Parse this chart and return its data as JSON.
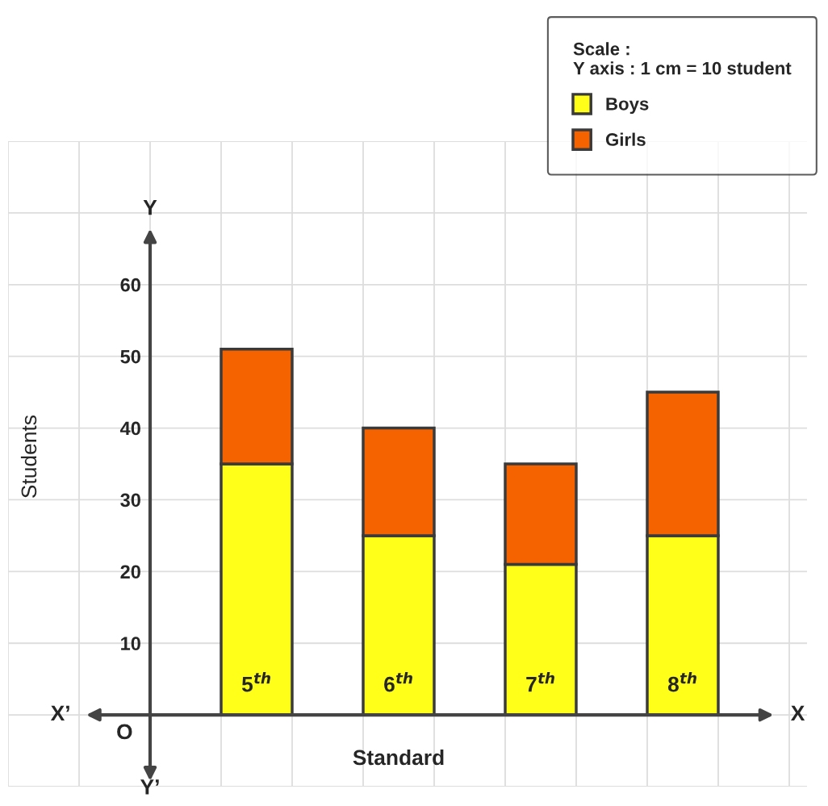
{
  "chart_data": {
    "type": "bar",
    "stacked": true,
    "xlabel": "Standard",
    "ylabel": "Students",
    "legend_title": "Scale :\nY axis : 1 cm = 10 student",
    "categories": [
      "5$^{th}$",
      "6$^{th}$",
      "7$^{th}$",
      "8$^{th}$"
    ],
    "series": [
      {
        "name": "Boys",
        "color": "#ffff1a",
        "values": [
          35,
          25,
          21,
          25
        ]
      },
      {
        "name": "Girls",
        "color": "#f56300",
        "values": [
          16,
          15,
          14,
          20
        ]
      }
    ],
    "ylim": [
      -10,
      80
    ],
    "yticks": [
      {
        "value": -10,
        "label": null
      },
      {
        "value": 0,
        "label": null
      },
      10,
      20,
      30,
      40,
      50,
      60,
      {
        "value": 70,
        "label": null
      },
      {
        "value": 80,
        "label": null
      }
    ],
    "grid": true,
    "legend": "top right",
    "annotations": [
      "X’",
      "X",
      "Y",
      "Y’",
      "O"
    ]
  }
}
